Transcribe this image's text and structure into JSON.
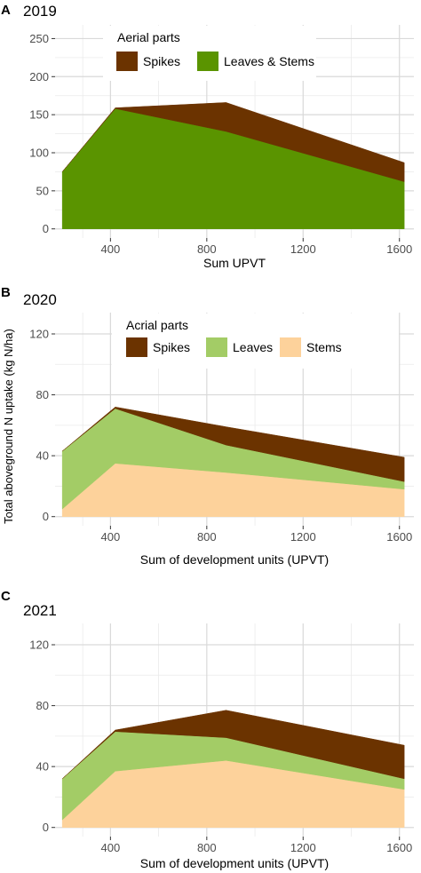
{
  "ylabel": "Total aboveground N uptake (kg N/ha)",
  "chart_data": [
    {
      "type": "area",
      "stacked": true,
      "panel_letter": "A",
      "title": "2019",
      "xlabel": "Sum UPVT",
      "ylabel": "",
      "xlim": [
        170,
        1660
      ],
      "ylim": [
        -12,
        268
      ],
      "xticks": [
        400,
        800,
        1200,
        1600
      ],
      "yticks": [
        0,
        50,
        100,
        150,
        200,
        250
      ],
      "grid": true,
      "legend": {
        "title": "Aerial parts",
        "placement": "top"
      },
      "x": [
        200,
        420,
        880,
        1620
      ],
      "series": [
        {
          "name": "Leaves & Stems",
          "color": "#5a9400",
          "values": [
            75,
            158,
            128,
            62
          ]
        },
        {
          "name": "Spikes",
          "color": "#6b3300",
          "values": [
            0,
            1,
            38,
            25
          ]
        }
      ]
    },
    {
      "type": "area",
      "stacked": true,
      "panel_letter": "B",
      "title": "2020",
      "xlabel": "Sum of development units (UPVT)",
      "ylabel": "",
      "xlim": [
        170,
        1660
      ],
      "ylim": [
        -6,
        134
      ],
      "xticks": [
        400,
        800,
        1200,
        1600
      ],
      "yticks": [
        0,
        40,
        80,
        120
      ],
      "grid": true,
      "legend": {
        "title": "Acrial parts",
        "placement": "top"
      },
      "x": [
        200,
        420,
        880,
        1620
      ],
      "series": [
        {
          "name": "Stems",
          "color": "#fdd29b",
          "values": [
            5,
            35,
            29,
            18
          ]
        },
        {
          "name": "Leaves",
          "color": "#a3cc66",
          "values": [
            38,
            36,
            18,
            5
          ]
        },
        {
          "name": "Spikes",
          "color": "#6b3300",
          "values": [
            0,
            1,
            12,
            16
          ]
        }
      ]
    },
    {
      "type": "area",
      "stacked": true,
      "panel_letter": "C",
      "title": "2021",
      "xlabel": "Sum of development units (UPVT)",
      "ylabel": "",
      "xlim": [
        170,
        1660
      ],
      "ylim": [
        -6,
        134
      ],
      "xticks": [
        400,
        800,
        1200,
        1600
      ],
      "yticks": [
        0,
        40,
        80,
        120
      ],
      "grid": true,
      "legend": null,
      "x": [
        200,
        420,
        880,
        1620
      ],
      "series": [
        {
          "name": "Stems",
          "color": "#fdd29b",
          "values": [
            5,
            37,
            44,
            25
          ]
        },
        {
          "name": "Leaves",
          "color": "#a3cc66",
          "values": [
            27,
            26,
            15,
            7
          ]
        },
        {
          "name": "Spikes",
          "color": "#6b3300",
          "values": [
            0,
            1,
            18,
            22
          ]
        }
      ]
    }
  ]
}
